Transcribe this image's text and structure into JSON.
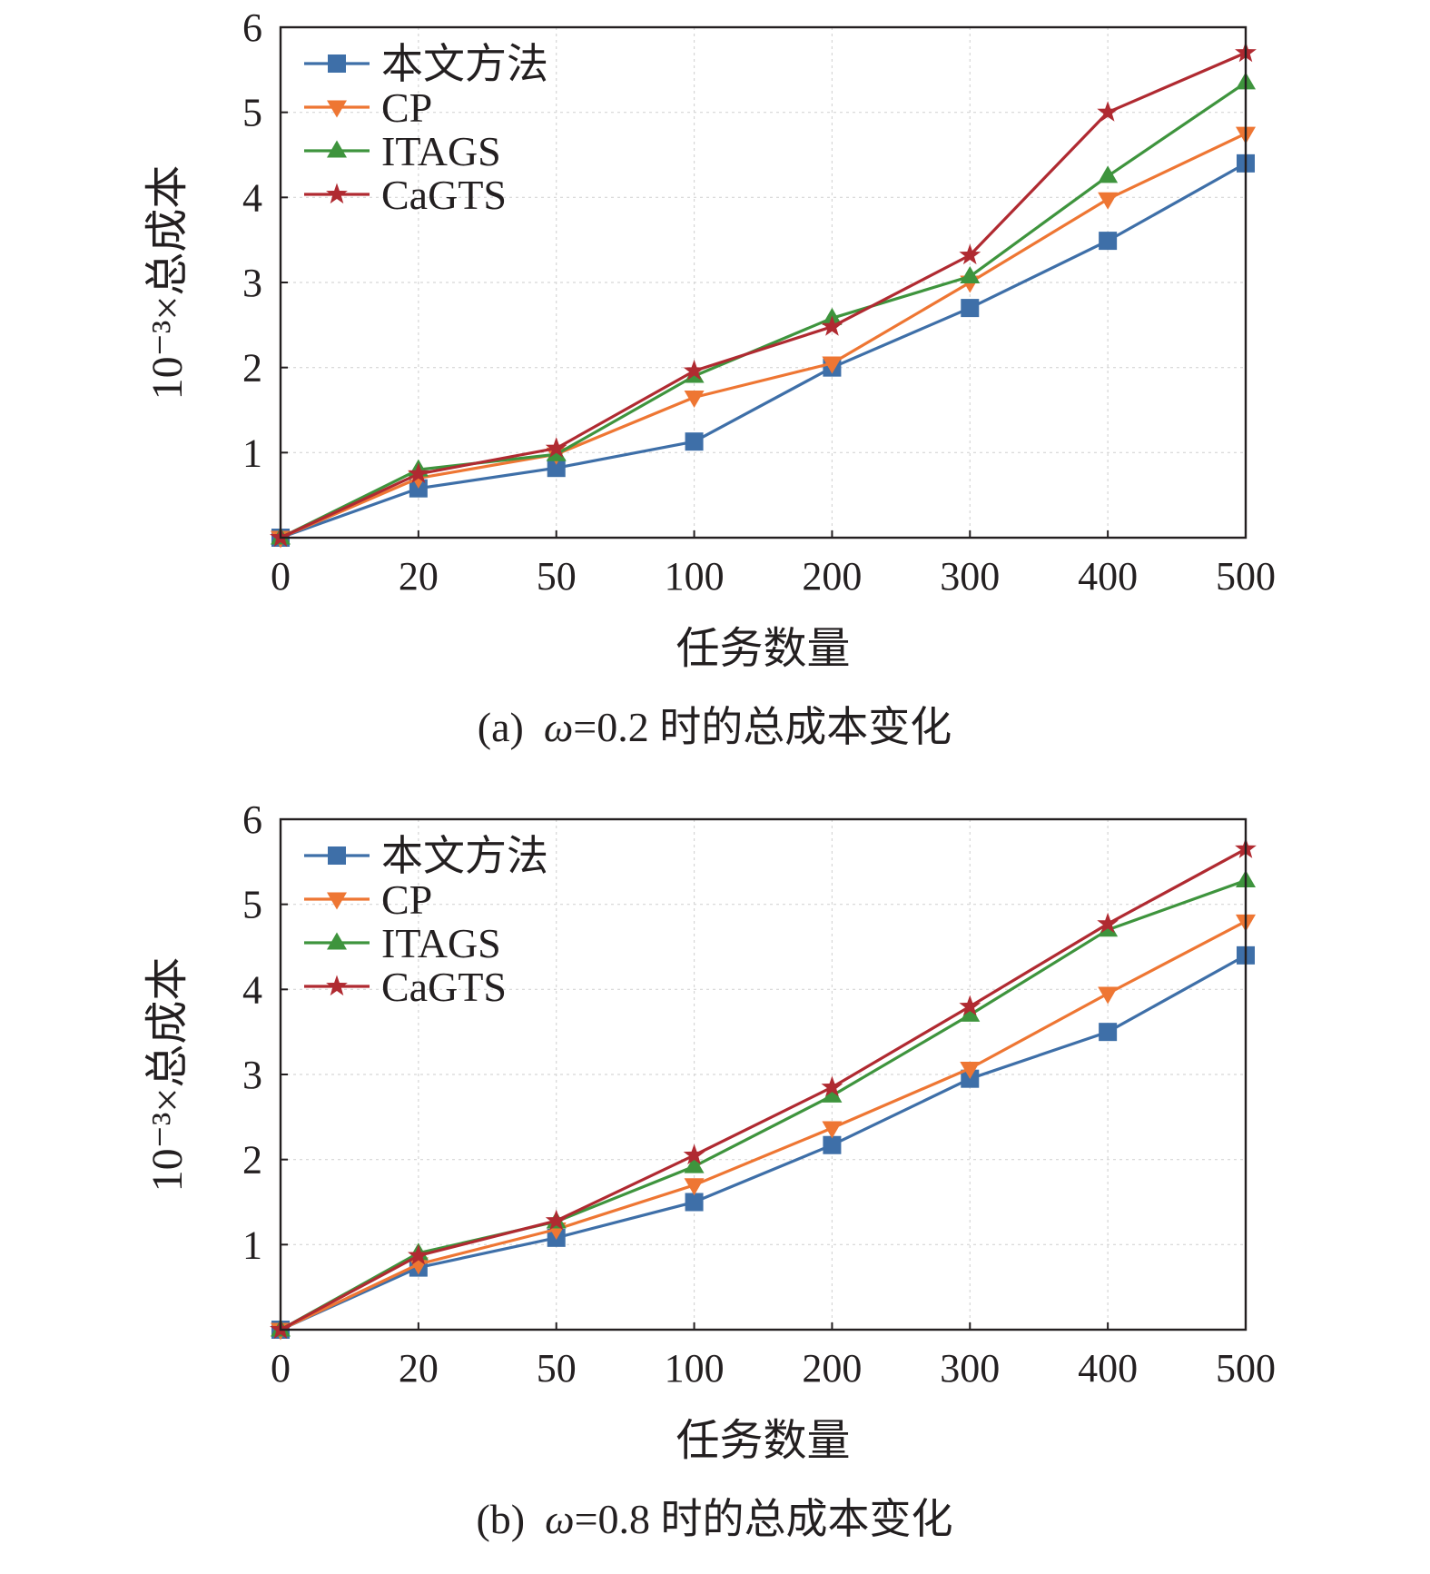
{
  "chart_data": [
    {
      "id": "a",
      "type": "line",
      "caption_prefix": "(a)",
      "caption_symbol": "ω",
      "caption_rest": "=0.2 时的总成本变化",
      "xlabel": "任务数量",
      "ylabel": "10⁻³×总成本",
      "categories": [
        "0",
        "20",
        "50",
        "100",
        "200",
        "300",
        "400",
        "500"
      ],
      "yticks": [
        "1",
        "2",
        "3",
        "4",
        "5",
        "6"
      ],
      "ylim": [
        0,
        6
      ],
      "grid": true,
      "legend_position": "top-left",
      "series": [
        {
          "name": "本文方法",
          "color": "#3e6fa8",
          "marker": "square",
          "values": [
            0,
            0.58,
            0.82,
            1.13,
            2.0,
            2.7,
            3.49,
            4.4
          ]
        },
        {
          "name": "CP",
          "color": "#ee7633",
          "marker": "tri-down",
          "values": [
            0,
            0.7,
            0.98,
            1.65,
            2.05,
            3.0,
            3.98,
            4.75
          ]
        },
        {
          "name": "ITAGS",
          "color": "#3e943d",
          "marker": "tri-up",
          "values": [
            0,
            0.8,
            0.98,
            1.9,
            2.58,
            3.07,
            4.25,
            5.35
          ]
        },
        {
          "name": "CaGTS",
          "color": "#b02a31",
          "marker": "star",
          "values": [
            0,
            0.75,
            1.05,
            1.96,
            2.48,
            3.32,
            5.0,
            5.7
          ]
        }
      ]
    },
    {
      "id": "b",
      "type": "line",
      "caption_prefix": "(b)",
      "caption_symbol": "ω",
      "caption_rest": "=0.8 时的总成本变化",
      "xlabel": "任务数量",
      "ylabel": "10⁻³×总成本",
      "categories": [
        "0",
        "20",
        "50",
        "100",
        "200",
        "300",
        "400",
        "500"
      ],
      "yticks": [
        "1",
        "2",
        "3",
        "4",
        "5",
        "6"
      ],
      "ylim": [
        0,
        6
      ],
      "grid": true,
      "legend_position": "top-left",
      "series": [
        {
          "name": "本文方法",
          "color": "#3e6fa8",
          "marker": "square",
          "values": [
            0,
            0.73,
            1.08,
            1.5,
            2.17,
            2.95,
            3.5,
            4.4
          ]
        },
        {
          "name": "CP",
          "color": "#ee7633",
          "marker": "tri-down",
          "values": [
            0,
            0.77,
            1.18,
            1.7,
            2.37,
            3.07,
            3.95,
            4.8
          ]
        },
        {
          "name": "ITAGS",
          "color": "#3e943d",
          "marker": "tri-up",
          "values": [
            0,
            0.9,
            1.27,
            1.92,
            2.75,
            3.7,
            4.7,
            5.28
          ]
        },
        {
          "name": "CaGTS",
          "color": "#b02a31",
          "marker": "star",
          "values": [
            0,
            0.87,
            1.28,
            2.05,
            2.85,
            3.8,
            4.77,
            5.65
          ]
        }
      ]
    }
  ]
}
